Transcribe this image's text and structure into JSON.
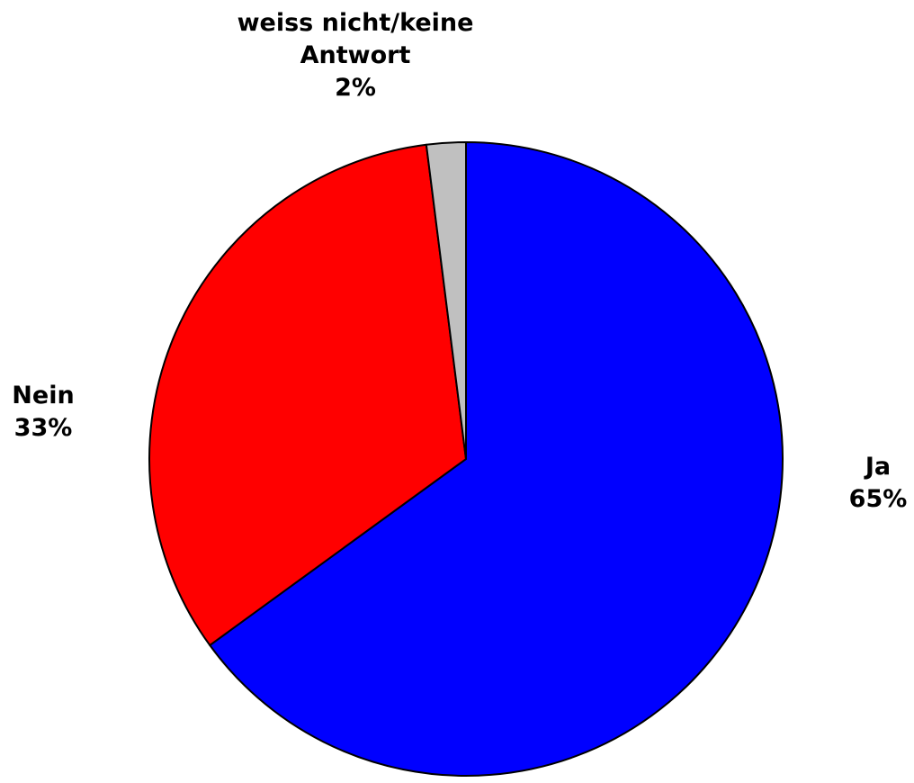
{
  "chart_data": {
    "type": "pie",
    "title": "",
    "start_angle_deg": 0,
    "direction": "clockwise",
    "slices": [
      {
        "label": "Ja",
        "percent_label": "65%",
        "value": 65,
        "color": "#0000ff"
      },
      {
        "label": "Nein",
        "percent_label": "33%",
        "value": 33,
        "color": "#ff0000"
      },
      {
        "label": "weiss nicht/keine Antwort",
        "label_lines": [
          "weiss nicht/keine",
          "Antwort"
        ],
        "percent_label": "2%",
        "value": 2,
        "color": "#c0c0c0"
      }
    ]
  }
}
